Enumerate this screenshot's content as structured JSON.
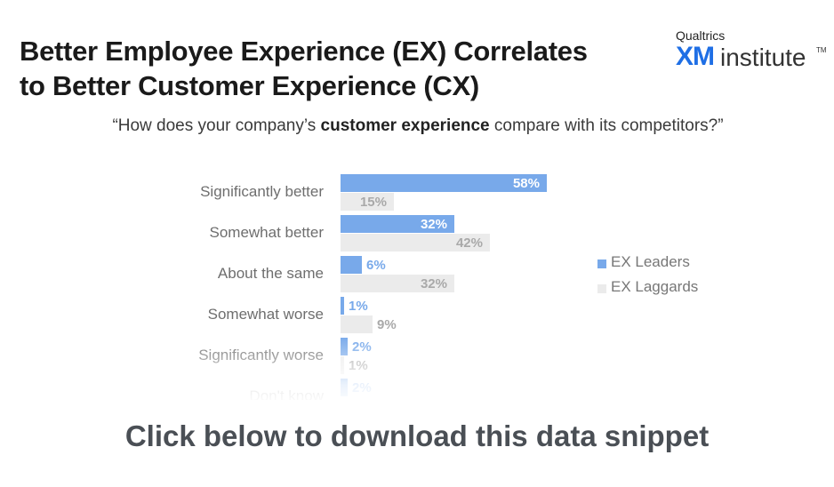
{
  "header": {
    "title_line1": "Better Employee Experience (EX) Correlates",
    "title_line2": "to Better Customer Experience (CX)"
  },
  "logo": {
    "brand": "Qualtrics",
    "xm": "XM",
    "institute": "institute",
    "tm": "TM"
  },
  "question": {
    "prefix": "“How does your company’s ",
    "bold": "customer experience",
    "suffix": " compare with its competitors?”"
  },
  "cta": {
    "label": "Click below to download this data snippet"
  },
  "colors": {
    "leaders": "#78a9ea",
    "laggards": "#ebebeb",
    "leaders_label": "#ffffff",
    "laggards_label": "#a9a9a9",
    "category_label": "#6e6e6e"
  },
  "chart_data": {
    "type": "bar",
    "orientation": "horizontal",
    "categories": [
      "Significantly better",
      "Somewhat better",
      "About the same",
      "Somewhat worse",
      "Significantly worse",
      "Don't know"
    ],
    "series": [
      {
        "name": "EX Leaders",
        "values": [
          58,
          32,
          6,
          1,
          2,
          2
        ],
        "labels": [
          "58%",
          "32%",
          "6%",
          "1%",
          "2%",
          "2%"
        ]
      },
      {
        "name": "EX Laggards",
        "values": [
          15,
          42,
          32,
          9,
          1,
          null
        ],
        "labels": [
          "15%",
          "42%",
          "32%",
          "9%",
          "1%",
          ""
        ]
      }
    ],
    "xlim": [
      0,
      60
    ],
    "grid": false,
    "legend": "right"
  }
}
